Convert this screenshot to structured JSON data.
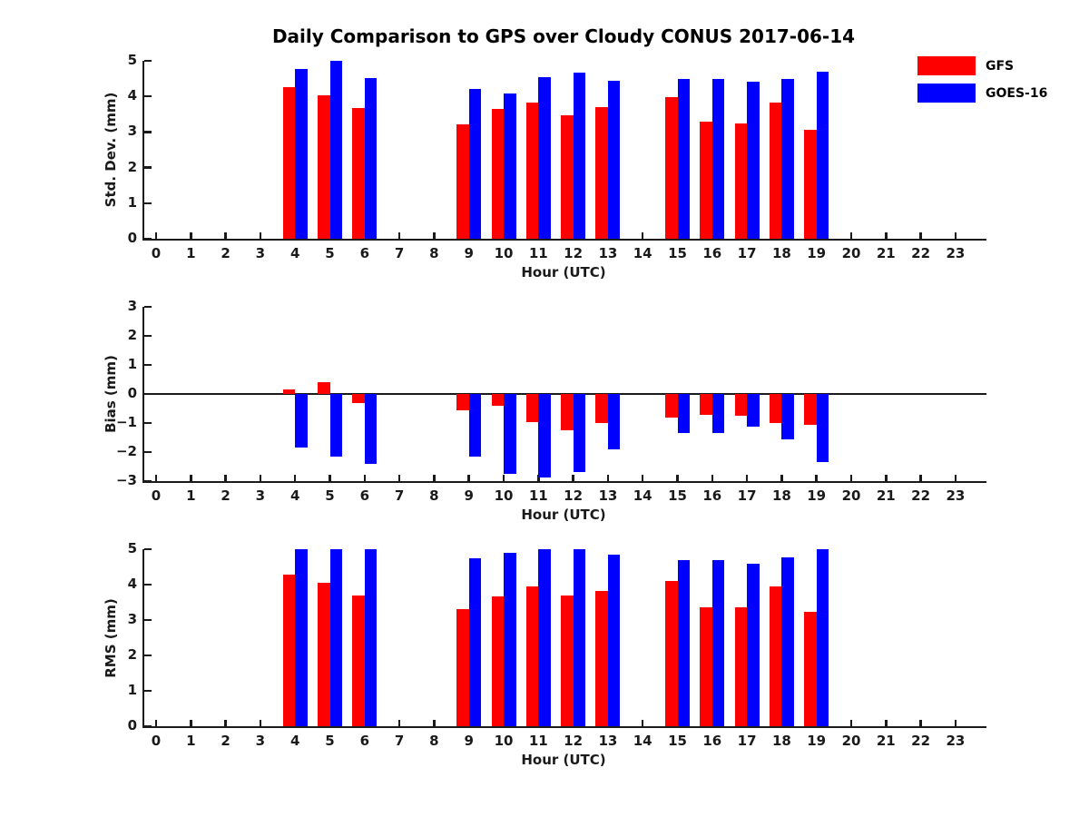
{
  "title": "Daily Comparison to GPS over Cloudy CONUS 2017-06-14",
  "legend": {
    "items": [
      {
        "label": "GFS",
        "color": "#ff0000"
      },
      {
        "label": "GOES-16",
        "color": "#0000ff"
      }
    ]
  },
  "chart_data": [
    {
      "type": "bar",
      "title": "Daily Comparison to GPS over Cloudy CONUS 2017-06-14",
      "ylabel": "Std. Dev. (mm)",
      "xlabel": "Hour (UTC)",
      "ylim": [
        0,
        5
      ],
      "yticks": [
        0,
        1,
        2,
        3,
        4,
        5
      ],
      "xticks": [
        0,
        1,
        2,
        3,
        4,
        5,
        6,
        7,
        8,
        9,
        10,
        11,
        12,
        13,
        14,
        15,
        16,
        17,
        18,
        19,
        20,
        21,
        22,
        23
      ],
      "grid": false,
      "legend_position": "upper right outside",
      "categories": [
        4,
        5,
        6,
        9,
        10,
        11,
        12,
        13,
        15,
        16,
        17,
        18,
        19
      ],
      "series": [
        {
          "name": "GFS",
          "color": "#ff0000",
          "values": [
            4.25,
            4.03,
            3.67,
            3.22,
            3.64,
            3.83,
            3.47,
            3.7,
            3.97,
            3.29,
            3.25,
            3.83,
            3.05
          ]
        },
        {
          "name": "GOES-16",
          "color": "#0000ff",
          "values": [
            4.76,
            5.0,
            4.51,
            4.2,
            4.08,
            4.54,
            4.67,
            4.45,
            4.48,
            4.49,
            4.42,
            4.49,
            4.7
          ]
        }
      ]
    },
    {
      "type": "bar",
      "ylabel": "Bias (mm)",
      "xlabel": "Hour (UTC)",
      "ylim": [
        -3,
        3
      ],
      "yticks": [
        -3,
        -2,
        -1,
        0,
        1,
        2,
        3
      ],
      "xticks": [
        0,
        1,
        2,
        3,
        4,
        5,
        6,
        7,
        8,
        9,
        10,
        11,
        12,
        13,
        14,
        15,
        16,
        17,
        18,
        19,
        20,
        21,
        22,
        23
      ],
      "grid": false,
      "zero_line": true,
      "categories": [
        4,
        5,
        6,
        9,
        10,
        11,
        12,
        13,
        15,
        16,
        17,
        18,
        19
      ],
      "series": [
        {
          "name": "GFS",
          "color": "#ff0000",
          "values": [
            0.15,
            0.4,
            -0.3,
            -0.55,
            -0.4,
            -0.97,
            -1.24,
            -1.0,
            -0.81,
            -0.73,
            -0.76,
            -1.01,
            -1.05
          ]
        },
        {
          "name": "GOES-16",
          "color": "#0000ff",
          "values": [
            -1.83,
            -2.15,
            -2.42,
            -2.15,
            -2.76,
            -2.87,
            -2.69,
            -1.92,
            -1.35,
            -1.35,
            -1.12,
            -1.57,
            -2.35
          ]
        }
      ]
    },
    {
      "type": "bar",
      "ylabel": "RMS (mm)",
      "xlabel": "Hour (UTC)",
      "ylim": [
        0,
        5
      ],
      "yticks": [
        0,
        1,
        2,
        3,
        4,
        5
      ],
      "xticks": [
        0,
        1,
        2,
        3,
        4,
        5,
        6,
        7,
        8,
        9,
        10,
        11,
        12,
        13,
        14,
        15,
        16,
        17,
        18,
        19,
        20,
        21,
        22,
        23
      ],
      "grid": false,
      "categories": [
        4,
        5,
        6,
        9,
        10,
        11,
        12,
        13,
        15,
        16,
        17,
        18,
        19
      ],
      "series": [
        {
          "name": "GFS",
          "color": "#ff0000",
          "values": [
            4.28,
            4.05,
            3.68,
            3.3,
            3.67,
            3.96,
            3.68,
            3.83,
            4.09,
            3.37,
            3.37,
            3.96,
            3.24
          ]
        },
        {
          "name": "GOES-16",
          "color": "#0000ff",
          "values": [
            5.0,
            5.0,
            5.0,
            4.75,
            4.91,
            5.0,
            5.0,
            4.85,
            4.7,
            4.68,
            4.58,
            4.77,
            5.0
          ]
        }
      ]
    }
  ]
}
